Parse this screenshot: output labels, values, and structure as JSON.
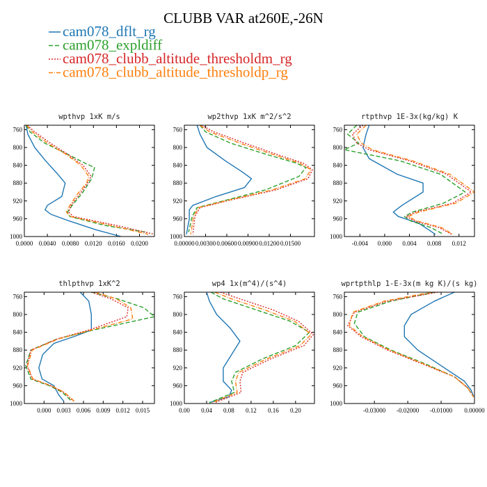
{
  "figure": {
    "title": "CLUBB VAR at260E,-26N"
  },
  "legend": [
    {
      "name": "cam078_dflt_rg",
      "color": "#1f77b4",
      "dash": "solid"
    },
    {
      "name": "cam078_expldiff",
      "color": "#2ca02c",
      "dash": "dash"
    },
    {
      "name": "cam078_clubb_altitude_thresholdm_rg",
      "color": "#d62728",
      "dash": "dot"
    },
    {
      "name": "cam078_clubb_altitude_thresholdp_rg",
      "color": "#ff7f0e",
      "dash": "dashdot"
    }
  ],
  "chart_data": [
    {
      "type": "line",
      "title": "wpthvp  1xK m/s",
      "xlim": [
        0,
        0.0226
      ],
      "ylim": [
        1000,
        750
      ],
      "xticks": [
        0,
        0.004,
        0.008,
        0.012,
        0.016,
        0.02
      ],
      "xtick_labels": [
        "0.0000",
        "0.0040",
        "0.0080",
        "0.0120",
        "0.0160",
        "0.0200"
      ],
      "yticks": [
        760,
        800,
        840,
        880,
        920,
        960,
        1000
      ],
      "ytick_labels": [
        "760",
        "800",
        "840",
        "880",
        "920",
        "960",
        "1000"
      ],
      "series": [
        {
          "name": "cam078_dflt_rg",
          "x": [
            0.0003,
            0.0006,
            0.0018,
            0.0037,
            0.0058,
            0.0071,
            0.0065,
            0.004,
            0.0036,
            0.0046,
            0.0078,
            0.0125,
            0.0168
          ],
          "y": [
            750,
            770,
            800,
            830,
            860,
            880,
            910,
            930,
            940,
            950,
            965,
            985,
            1000
          ]
        },
        {
          "name": "cam078_expldiff",
          "x": [
            0.0003,
            0.001,
            0.0035,
            0.0075,
            0.0105,
            0.0122,
            0.0117,
            0.0102,
            0.0083,
            0.0075,
            0.0079,
            0.014,
            0.021
          ],
          "y": [
            750,
            765,
            790,
            815,
            835,
            845,
            870,
            900,
            930,
            945,
            955,
            975,
            990
          ]
        },
        {
          "name": "cam078_clubb_altitude_thresholdm_rg",
          "x": [
            0.0005,
            0.0018,
            0.0045,
            0.0075,
            0.0102,
            0.0116,
            0.011,
            0.0096,
            0.0081,
            0.0077,
            0.0085,
            0.016,
            0.0226
          ],
          "y": [
            750,
            765,
            790,
            815,
            840,
            865,
            880,
            905,
            930,
            945,
            955,
            975,
            995
          ]
        },
        {
          "name": "cam078_clubb_altitude_thresholdp_rg",
          "x": [
            0.0004,
            0.0014,
            0.004,
            0.0072,
            0.0098,
            0.0112,
            0.0108,
            0.0092,
            0.0079,
            0.0073,
            0.008,
            0.015,
            0.0215
          ],
          "y": [
            750,
            765,
            790,
            815,
            840,
            865,
            880,
            905,
            930,
            945,
            955,
            975,
            995
          ]
        }
      ]
    },
    {
      "type": "line",
      "title": "wp2thvp  1xK m^2/s^2",
      "xlim": [
        0,
        0.0184
      ],
      "ylim": [
        1000,
        750
      ],
      "xticks": [
        0,
        0.003,
        0.006,
        0.009,
        0.012,
        0.015
      ],
      "xtick_labels": [
        "0.00000",
        "0.00300",
        "0.00600",
        "0.00900",
        "0.01200",
        "0.01500"
      ],
      "yticks": [
        760,
        800,
        840,
        880,
        920,
        960,
        1000
      ],
      "ytick_labels": [
        "760",
        "800",
        "840",
        "880",
        "920",
        "960",
        "1000"
      ],
      "series": [
        {
          "name": "cam078_dflt_rg",
          "x": [
            0.0018,
            0.0022,
            0.0032,
            0.0058,
            0.0082,
            0.0095,
            0.0085,
            0.0045,
            0.0012,
            0.0007,
            0.0007,
            0.0003
          ],
          "y": [
            750,
            770,
            800,
            830,
            855,
            870,
            890,
            910,
            930,
            940,
            960,
            995
          ]
        },
        {
          "name": "cam078_expldiff",
          "x": [
            0.0022,
            0.003,
            0.0065,
            0.0115,
            0.0158,
            0.0172,
            0.0162,
            0.0115,
            0.0055,
            0.0018,
            0.0011,
            0.0006
          ],
          "y": [
            750,
            765,
            790,
            815,
            835,
            845,
            865,
            895,
            920,
            935,
            955,
            990
          ]
        },
        {
          "name": "cam078_clubb_altitude_thresholdm_rg",
          "x": [
            0.0024,
            0.0042,
            0.0085,
            0.013,
            0.0168,
            0.0181,
            0.0175,
            0.013,
            0.006,
            0.0022,
            0.0015,
            0.0012
          ],
          "y": [
            750,
            765,
            790,
            815,
            835,
            850,
            870,
            895,
            920,
            935,
            955,
            995
          ]
        },
        {
          "name": "cam078_clubb_altitude_thresholdp_rg",
          "x": [
            0.0022,
            0.0036,
            0.0078,
            0.0124,
            0.0163,
            0.0179,
            0.0171,
            0.0125,
            0.0058,
            0.002,
            0.0013,
            0.0009
          ],
          "y": [
            750,
            765,
            790,
            815,
            835,
            850,
            870,
            895,
            920,
            935,
            955,
            995
          ]
        }
      ]
    },
    {
      "type": "line",
      "title": "rtpthvp  1E-3x(kg/kg) K",
      "xlim": [
        -0.0065,
        0.0145
      ],
      "ylim": [
        1000,
        750
      ],
      "xticks": [
        -0.004,
        0,
        0.004,
        0.008,
        0.012
      ],
      "xtick_labels": [
        "-0.004",
        "0.000",
        "0.004",
        "0.008",
        "0.012"
      ],
      "yticks": [
        760,
        800,
        840,
        880,
        920,
        960,
        1000
      ],
      "ytick_labels": [
        "760",
        "800",
        "840",
        "880",
        "920",
        "960",
        "1000"
      ],
      "series": [
        {
          "name": "cam078_dflt_rg",
          "x": [
            -0.0025,
            -0.003,
            -0.0035,
            -0.0025,
            0.002,
            0.0062,
            0.0062,
            0.0028,
            0.0014,
            0.0022,
            0.0055,
            0.0082
          ],
          "y": [
            750,
            770,
            800,
            825,
            860,
            880,
            900,
            930,
            945,
            955,
            970,
            995
          ]
        },
        {
          "name": "cam078_expldiff",
          "x": [
            -0.0045,
            -0.006,
            -0.0042,
            -0.0065,
            0.0025,
            0.009,
            0.013,
            0.0095,
            0.0045,
            0.0032,
            0.0042,
            0.0075,
            0.0095
          ],
          "y": [
            750,
            770,
            790,
            805,
            830,
            860,
            900,
            925,
            945,
            955,
            965,
            980,
            995
          ]
        },
        {
          "name": "cam078_clubb_altitude_thresholdm_rg",
          "x": [
            -0.0035,
            -0.0052,
            -0.0045,
            -0.0025,
            0.004,
            0.01,
            0.014,
            0.011,
            0.005,
            0.0035,
            0.0048,
            0.0088,
            0.0108
          ],
          "y": [
            750,
            770,
            790,
            805,
            830,
            860,
            900,
            925,
            945,
            955,
            965,
            980,
            995
          ]
        },
        {
          "name": "cam078_clubb_altitude_thresholdp_rg",
          "x": [
            -0.003,
            -0.0045,
            -0.0038,
            -0.002,
            0.0045,
            0.0105,
            0.0145,
            0.0115,
            0.0055,
            0.0038,
            0.0052,
            0.0092,
            0.011
          ],
          "y": [
            750,
            770,
            790,
            805,
            830,
            860,
            900,
            925,
            945,
            955,
            965,
            980,
            995
          ]
        }
      ]
    },
    {
      "type": "line",
      "title": "thlpthvp  1xK^2",
      "xlim": [
        -0.003,
        0.0168
      ],
      "ylim": [
        1000,
        750
      ],
      "xticks": [
        0,
        0.003,
        0.006,
        0.009,
        0.012,
        0.015
      ],
      "xtick_labels": [
        "0.000",
        "0.003",
        "0.006",
        "0.009",
        "0.012",
        "0.015"
      ],
      "yticks": [
        760,
        800,
        840,
        880,
        920,
        960,
        1000
      ],
      "ytick_labels": [
        "760",
        "800",
        "840",
        "880",
        "920",
        "960",
        "1000"
      ],
      "series": [
        {
          "name": "cam078_dflt_rg",
          "x": [
            0.0055,
            0.0068,
            0.0072,
            0.0072,
            0.0045,
            0.0015,
            -0.0002,
            -0.0008,
            -0.0003,
            0.0015,
            0.0022,
            0.003
          ],
          "y": [
            750,
            770,
            800,
            835,
            850,
            865,
            890,
            920,
            945,
            960,
            980,
            995
          ]
        },
        {
          "name": "cam078_expldiff",
          "x": [
            0.0072,
            0.0112,
            0.0152,
            0.0168,
            0.0075,
            0.002,
            -0.002,
            -0.0028,
            -0.002,
            0.0008,
            0.0028,
            0.0042
          ],
          "y": [
            750,
            765,
            785,
            805,
            835,
            855,
            880,
            915,
            945,
            960,
            975,
            995
          ]
        },
        {
          "name": "cam078_clubb_altitude_thresholdm_rg",
          "x": [
            0.0072,
            0.0102,
            0.0128,
            0.0126,
            0.0068,
            0.002,
            -0.002,
            -0.0026,
            -0.0018,
            0.001,
            0.003,
            0.0045
          ],
          "y": [
            750,
            765,
            785,
            805,
            835,
            855,
            880,
            915,
            945,
            960,
            975,
            995
          ]
        },
        {
          "name": "cam078_clubb_altitude_thresholdp_rg",
          "x": [
            0.0078,
            0.011,
            0.0132,
            0.0135,
            0.0072,
            0.0022,
            -0.0018,
            -0.0025,
            -0.0017,
            0.0011,
            0.0031,
            0.0046
          ],
          "y": [
            750,
            765,
            785,
            810,
            835,
            855,
            880,
            915,
            945,
            960,
            975,
            995
          ]
        }
      ]
    },
    {
      "type": "line",
      "title": "wp4  1x(m^4)/(s^4)",
      "xlim": [
        0,
        0.234
      ],
      "ylim": [
        1000,
        750
      ],
      "xticks": [
        0,
        0.04,
        0.08,
        0.12,
        0.16,
        0.2
      ],
      "xtick_labels": [
        "0.00",
        "0.04",
        "0.08",
        "0.12",
        "0.16",
        "0.20"
      ],
      "yticks": [
        760,
        800,
        840,
        880,
        920,
        960,
        1000
      ],
      "ytick_labels": [
        "760",
        "800",
        "840",
        "880",
        "920",
        "960",
        "1000"
      ],
      "series": [
        {
          "name": "cam078_dflt_rg",
          "x": [
            0.04,
            0.045,
            0.058,
            0.082,
            0.1,
            0.085,
            0.07,
            0.07,
            0.085,
            0.08,
            0.045
          ],
          "y": [
            750,
            770,
            800,
            830,
            860,
            890,
            920,
            950,
            970,
            985,
            998
          ]
        },
        {
          "name": "cam078_expldiff",
          "x": [
            0.048,
            0.07,
            0.13,
            0.19,
            0.225,
            0.2,
            0.14,
            0.092,
            0.085,
            0.09,
            0.045
          ],
          "y": [
            750,
            765,
            790,
            815,
            840,
            870,
            900,
            930,
            950,
            975,
            998
          ]
        },
        {
          "name": "cam078_clubb_altitude_thresholdm_rg",
          "x": [
            0.065,
            0.1,
            0.16,
            0.205,
            0.232,
            0.215,
            0.155,
            0.105,
            0.1,
            0.102,
            0.055
          ],
          "y": [
            750,
            765,
            790,
            815,
            845,
            870,
            900,
            930,
            950,
            975,
            998
          ]
        },
        {
          "name": "cam078_clubb_altitude_thresholdp_rg",
          "x": [
            0.055,
            0.085,
            0.145,
            0.198,
            0.228,
            0.208,
            0.148,
            0.098,
            0.092,
            0.095,
            0.05
          ],
          "y": [
            750,
            765,
            790,
            815,
            845,
            870,
            900,
            930,
            950,
            975,
            998
          ]
        }
      ]
    },
    {
      "type": "line",
      "title": "wprtpthlp  1-E-3x(m kg K)/(s kg)",
      "xlim": [
        -0.039,
        0
      ],
      "ylim": [
        1000,
        750
      ],
      "xticks": [
        -0.03,
        -0.02,
        -0.01,
        0
      ],
      "xtick_labels": [
        "-0.03000",
        "-0.02000",
        "-0.01000",
        "0.00000"
      ],
      "yticks": [
        760,
        800,
        840,
        880,
        920,
        960,
        1000
      ],
      "ytick_labels": [
        "760",
        "800",
        "840",
        "880",
        "920",
        "960",
        "1000"
      ],
      "series": [
        {
          "name": "cam078_dflt_rg",
          "x": [
            -0.006,
            -0.012,
            -0.019,
            -0.021,
            -0.021,
            -0.017,
            -0.009,
            -0.003,
            -0.001,
            -0.0002
          ],
          "y": [
            750,
            770,
            800,
            825,
            850,
            880,
            920,
            950,
            970,
            985
          ]
        },
        {
          "name": "cam078_expldiff",
          "x": [
            -0.012,
            -0.025,
            -0.035,
            -0.036,
            -0.033,
            -0.025,
            -0.015,
            -0.006,
            -0.002,
            -0.0003
          ],
          "y": [
            750,
            770,
            795,
            820,
            850,
            880,
            910,
            940,
            965,
            985
          ]
        },
        {
          "name": "cam078_clubb_altitude_thresholdm_rg",
          "x": [
            -0.011,
            -0.026,
            -0.036,
            -0.038,
            -0.034,
            -0.026,
            -0.016,
            -0.006,
            -0.002,
            -0.0003
          ],
          "y": [
            750,
            770,
            795,
            825,
            850,
            880,
            910,
            940,
            965,
            985
          ]
        },
        {
          "name": "cam078_clubb_altitude_thresholdp_rg",
          "x": [
            -0.013,
            -0.027,
            -0.0365,
            -0.0375,
            -0.0335,
            -0.0255,
            -0.0155,
            -0.006,
            -0.002,
            -0.0003
          ],
          "y": [
            750,
            770,
            795,
            825,
            850,
            880,
            910,
            940,
            965,
            985
          ]
        }
      ]
    }
  ]
}
